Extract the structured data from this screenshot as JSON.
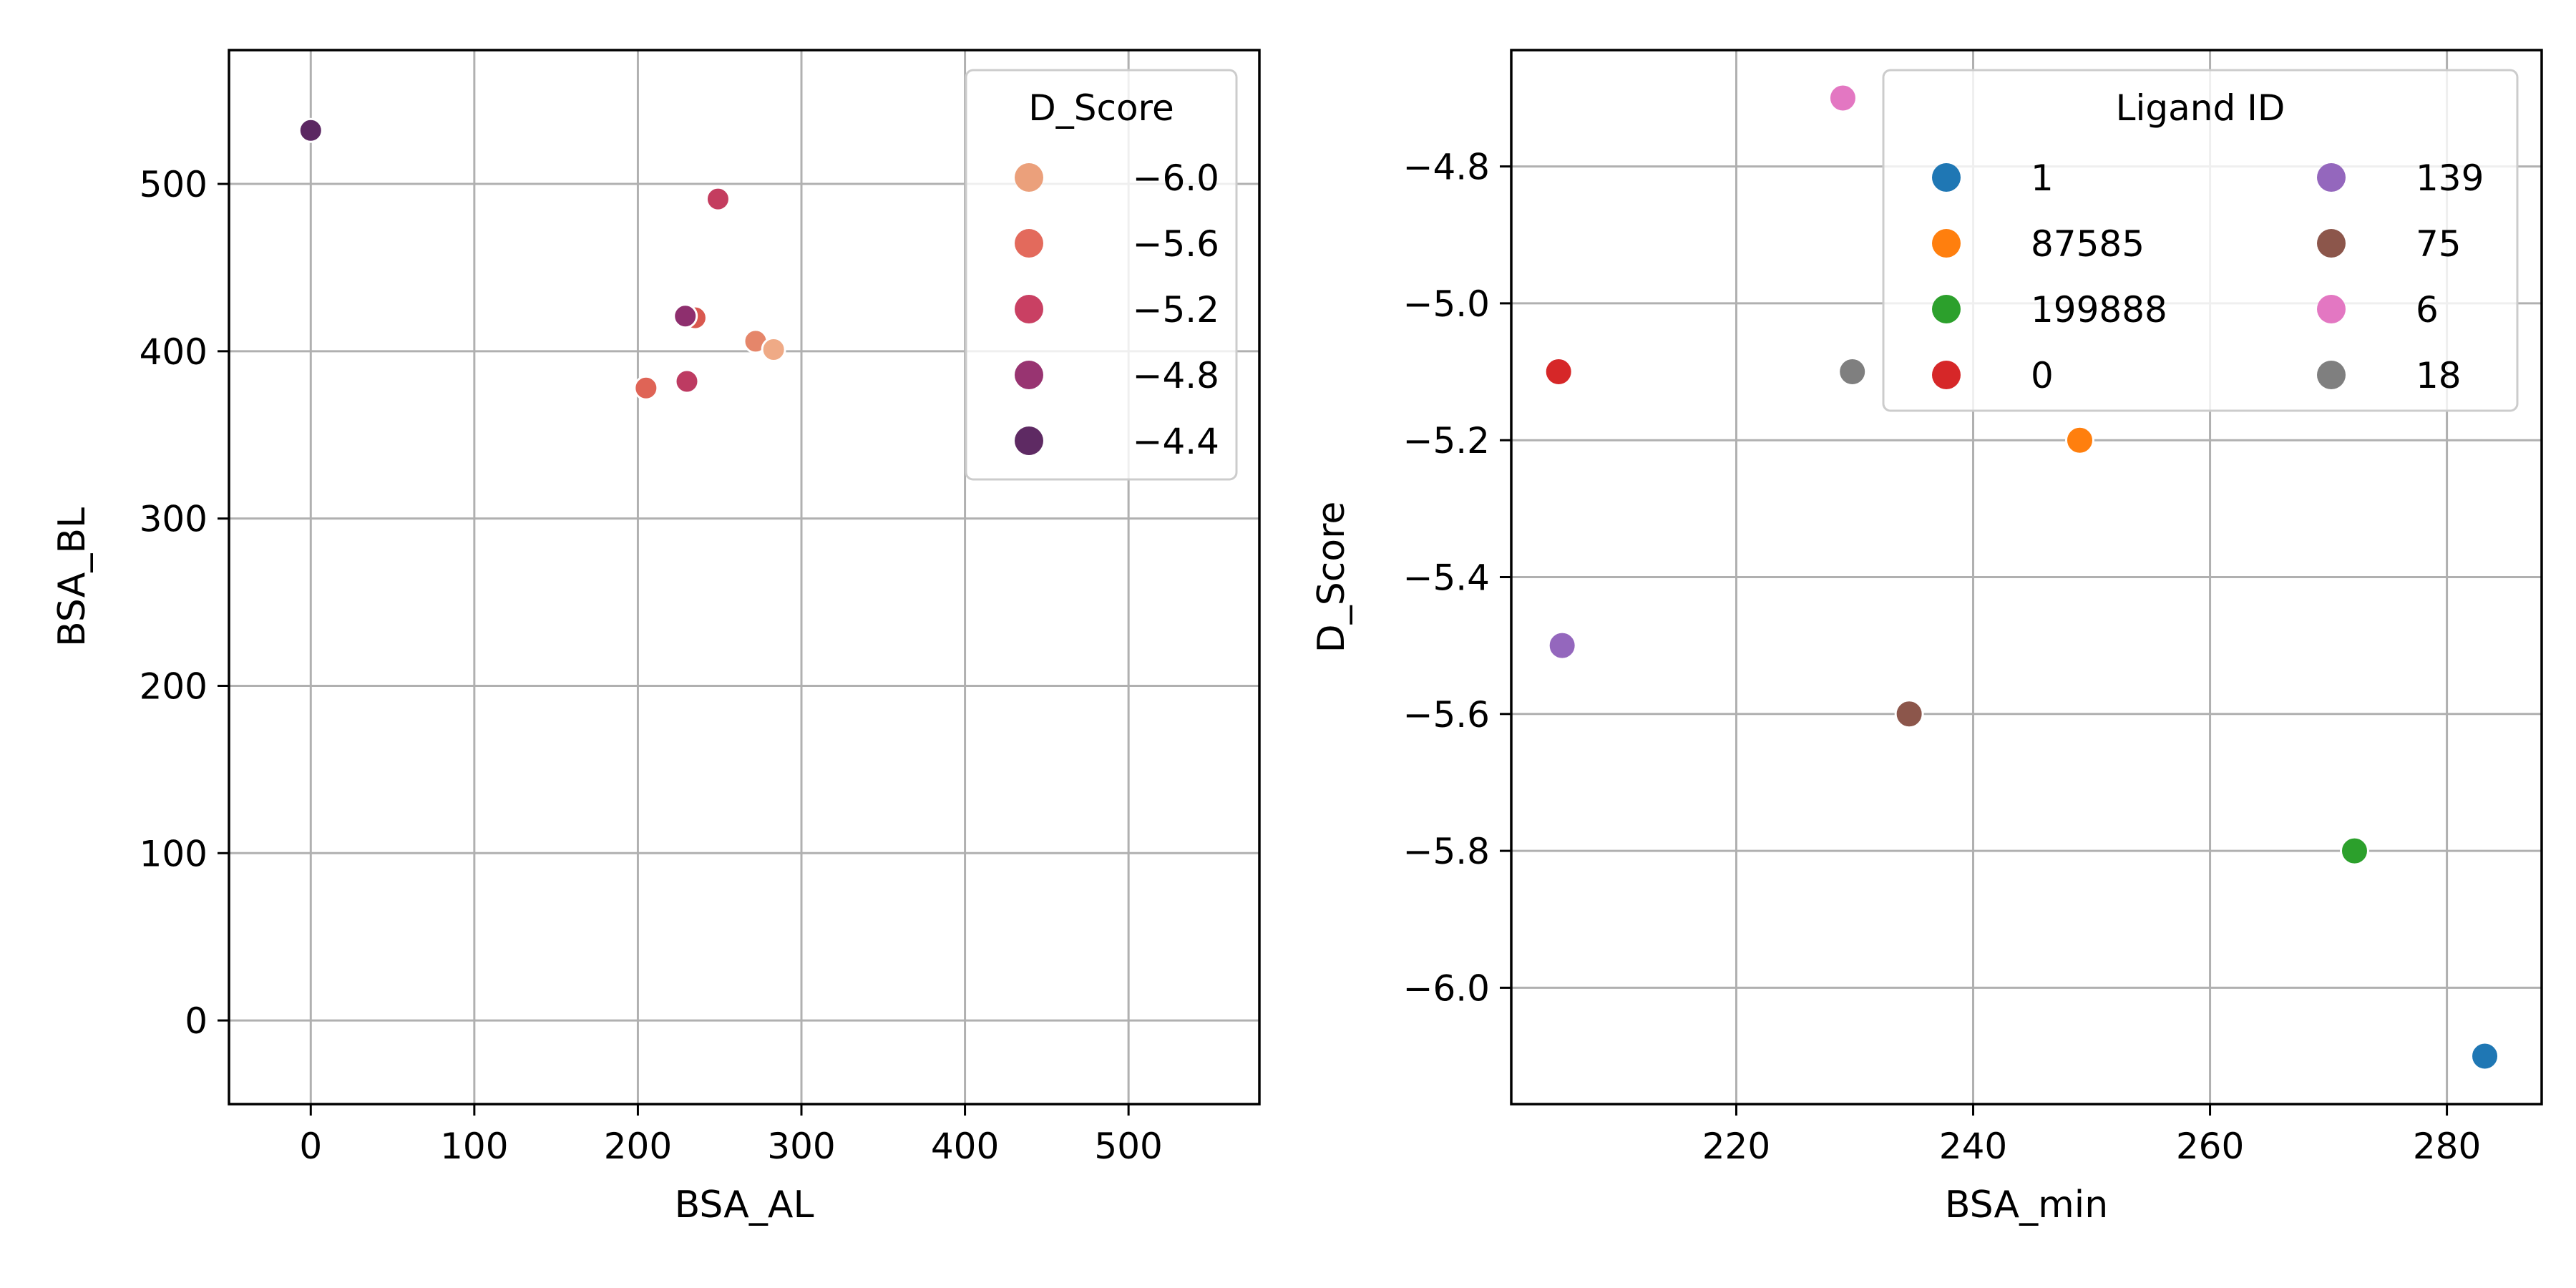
{
  "chart_data": [
    {
      "type": "scatter",
      "title": "",
      "xlabel": "BSA_AL",
      "ylabel": "BSA_BL",
      "xlim": [
        -50,
        580
      ],
      "ylim": [
        -50,
        580
      ],
      "xticks": [
        0,
        100,
        200,
        300,
        400,
        500
      ],
      "yticks": [
        0,
        100,
        200,
        300,
        400,
        500
      ],
      "xtick_labels": [
        "0",
        "100",
        "200",
        "300",
        "400",
        "500"
      ],
      "ytick_labels": [
        "0",
        "100",
        "200",
        "300",
        "400",
        "500"
      ],
      "grid": true,
      "hue": "D_Score",
      "legend": {
        "title": "D_Score",
        "placement": "top-right",
        "entries": [
          {
            "label": "−6.0",
            "color": "#eba07b"
          },
          {
            "label": "−5.6",
            "color": "#e36a5c"
          },
          {
            "label": "−5.2",
            "color": "#c94063"
          },
          {
            "label": "−4.8",
            "color": "#983471"
          },
          {
            "label": "−4.4",
            "color": "#5e2a63"
          }
        ]
      },
      "points": [
        {
          "x": 0,
          "y": 532,
          "hue": -4.4,
          "color": "#5b2762"
        },
        {
          "x": 249,
          "y": 491,
          "hue": -5.2,
          "color": "#c43d5f"
        },
        {
          "x": 235,
          "y": 420,
          "hue": -5.6,
          "color": "#d9584f"
        },
        {
          "x": 229,
          "y": 421,
          "hue": -4.8,
          "color": "#8e2f6e"
        },
        {
          "x": 272,
          "y": 406,
          "hue": -5.8,
          "color": "#e5866a"
        },
        {
          "x": 283,
          "y": 401,
          "hue": -6.1,
          "color": "#efaa86"
        },
        {
          "x": 205,
          "y": 378,
          "hue": -5.5,
          "color": "#df6456"
        },
        {
          "x": 230,
          "y": 382,
          "hue": -5.1,
          "color": "#bd3b62"
        }
      ]
    },
    {
      "type": "scatter",
      "title": "",
      "xlabel": "BSA_min",
      "ylabel": "D_Score",
      "xlim": [
        201,
        288
      ],
      "ylim": [
        -6.17,
        -4.63
      ],
      "xticks": [
        220,
        240,
        260,
        280
      ],
      "yticks": [
        -4.8,
        -5.0,
        -5.2,
        -5.4,
        -5.6,
        -5.8,
        -6.0
      ],
      "xtick_labels": [
        "220",
        "240",
        "260",
        "280"
      ],
      "ytick_labels": [
        "−4.8",
        "−5.0",
        "−5.2",
        "−5.4",
        "−5.6",
        "−5.8",
        "−6.0"
      ],
      "grid": true,
      "hue": "Ligand ID",
      "legend": {
        "title": "Ligand ID",
        "placement": "top-right",
        "columns": 2,
        "entries": [
          {
            "label": "1",
            "color": "#1f77b4"
          },
          {
            "label": "87585",
            "color": "#ff7f0e"
          },
          {
            "label": "199888",
            "color": "#2ca02c"
          },
          {
            "label": "0",
            "color": "#d62728"
          },
          {
            "label": "139",
            "color": "#9467bd"
          },
          {
            "label": "75",
            "color": "#8c564b"
          },
          {
            "label": "6",
            "color": "#e377c2"
          },
          {
            "label": "18",
            "color": "#7f7f7f"
          }
        ]
      },
      "points": [
        {
          "ligand": "1",
          "x": 283.2,
          "y": -6.1,
          "color": "#1f77b4"
        },
        {
          "ligand": "87585",
          "x": 249,
          "y": -5.2,
          "color": "#ff7f0e"
        },
        {
          "ligand": "199888",
          "x": 272.2,
          "y": -5.8,
          "color": "#2ca02c"
        },
        {
          "ligand": "0",
          "x": 205,
          "y": -5.1,
          "color": "#d62728"
        },
        {
          "ligand": "139",
          "x": 205.3,
          "y": -5.5,
          "color": "#9467bd"
        },
        {
          "ligand": "75",
          "x": 234.6,
          "y": -5.6,
          "color": "#8c564b"
        },
        {
          "ligand": "6",
          "x": 229,
          "y": -4.7,
          "color": "#e377c2"
        },
        {
          "ligand": "18",
          "x": 229.8,
          "y": -5.1,
          "color": "#7f7f7f"
        }
      ]
    }
  ]
}
